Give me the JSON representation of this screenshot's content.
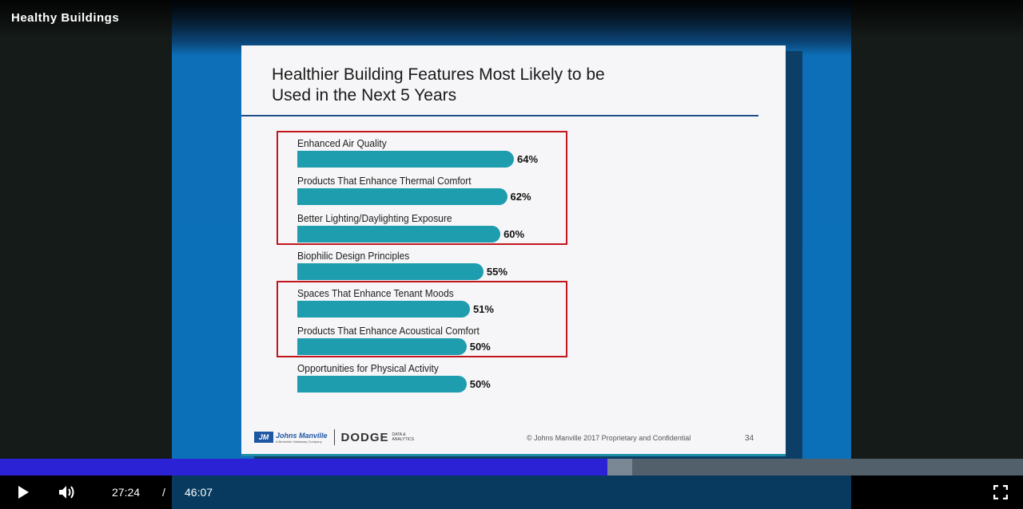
{
  "video": {
    "title": "Healthy Buildings",
    "current_time": "27:24",
    "time_separator": "/",
    "duration": "46:07",
    "progress_played_fraction": 0.594,
    "progress_buffered_fraction": 0.618
  },
  "controls": {
    "play_icon": "play-icon",
    "volume_icon": "volume-icon",
    "fullscreen_icon": "fullscreen-icon"
  },
  "slide": {
    "title_line1": "Healthier Building Features Most Likely to be",
    "title_line2": "Used in the Next 5 Years",
    "footer_brand_jm": "Johns Manville",
    "footer_brand_jm_sub": "A Berkshire Hathaway Company",
    "footer_brand_dodge": "DODGE",
    "footer_brand_dodge_sub": "DATA & ANALYTICS",
    "copyright": "© Johns Manville 2017 Proprietary and Confidential",
    "page_number": "34"
  },
  "chart_data": {
    "type": "bar",
    "orientation": "horizontal",
    "title": "Healthier Building Features Most Likely to be Used in the Next 5 Years",
    "categories": [
      "Enhanced Air Quality",
      "Products That Enhance Thermal Comfort",
      "Better Lighting/Daylighting Exposure",
      "Biophilic Design Principles",
      "Spaces That Enhance Tenant Moods",
      "Products That Enhance Acoustical Comfort",
      "Opportunities for Physical Activity"
    ],
    "values": [
      64,
      62,
      60,
      55,
      51,
      50,
      50
    ],
    "value_labels": [
      "64%",
      "62%",
      "60%",
      "55%",
      "51%",
      "50%",
      "50%"
    ],
    "unit": "%",
    "bar_color": "#1e9daf",
    "highlight_color": "#c2161c",
    "highlighted_groups": [
      [
        0,
        1,
        2
      ],
      [
        4,
        5
      ]
    ]
  },
  "colors": {
    "progress_played": "#2b22d6",
    "slide_background": "#0c70b8"
  }
}
